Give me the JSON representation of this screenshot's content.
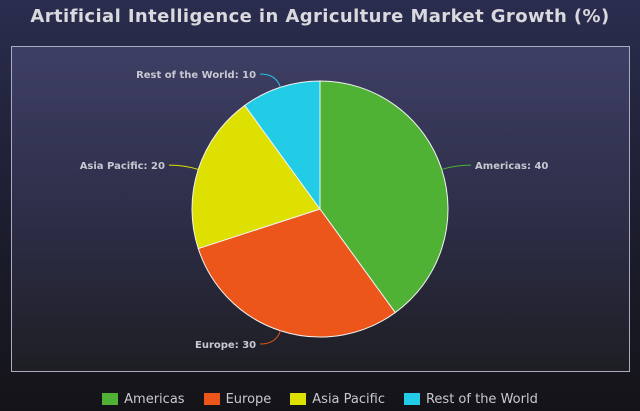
{
  "chart_data": {
    "type": "pie",
    "title": "Artificial Intelligence in Agriculture Market Growth (%)",
    "labels": [
      "Americas",
      "Europe",
      "Asia Pacific",
      "Rest of the World"
    ],
    "values": [
      40,
      30,
      20,
      10
    ],
    "data_labels": [
      "Americas: 40",
      "Europe: 30",
      "Asia Pacific: 20",
      "Rest of the World: 10"
    ],
    "colors": [
      "#4fb234",
      "#ec561b",
      "#dde000",
      "#22cce6"
    ],
    "legend_position": "bottom",
    "start_angle": "top, clockwise"
  },
  "legend": {
    "items": [
      {
        "label": "Americas",
        "color": "#4fb234"
      },
      {
        "label": "Europe",
        "color": "#ec561b"
      },
      {
        "label": "Asia Pacific",
        "color": "#dde000"
      },
      {
        "label": "Rest of the World",
        "color": "#22cce6"
      }
    ]
  }
}
